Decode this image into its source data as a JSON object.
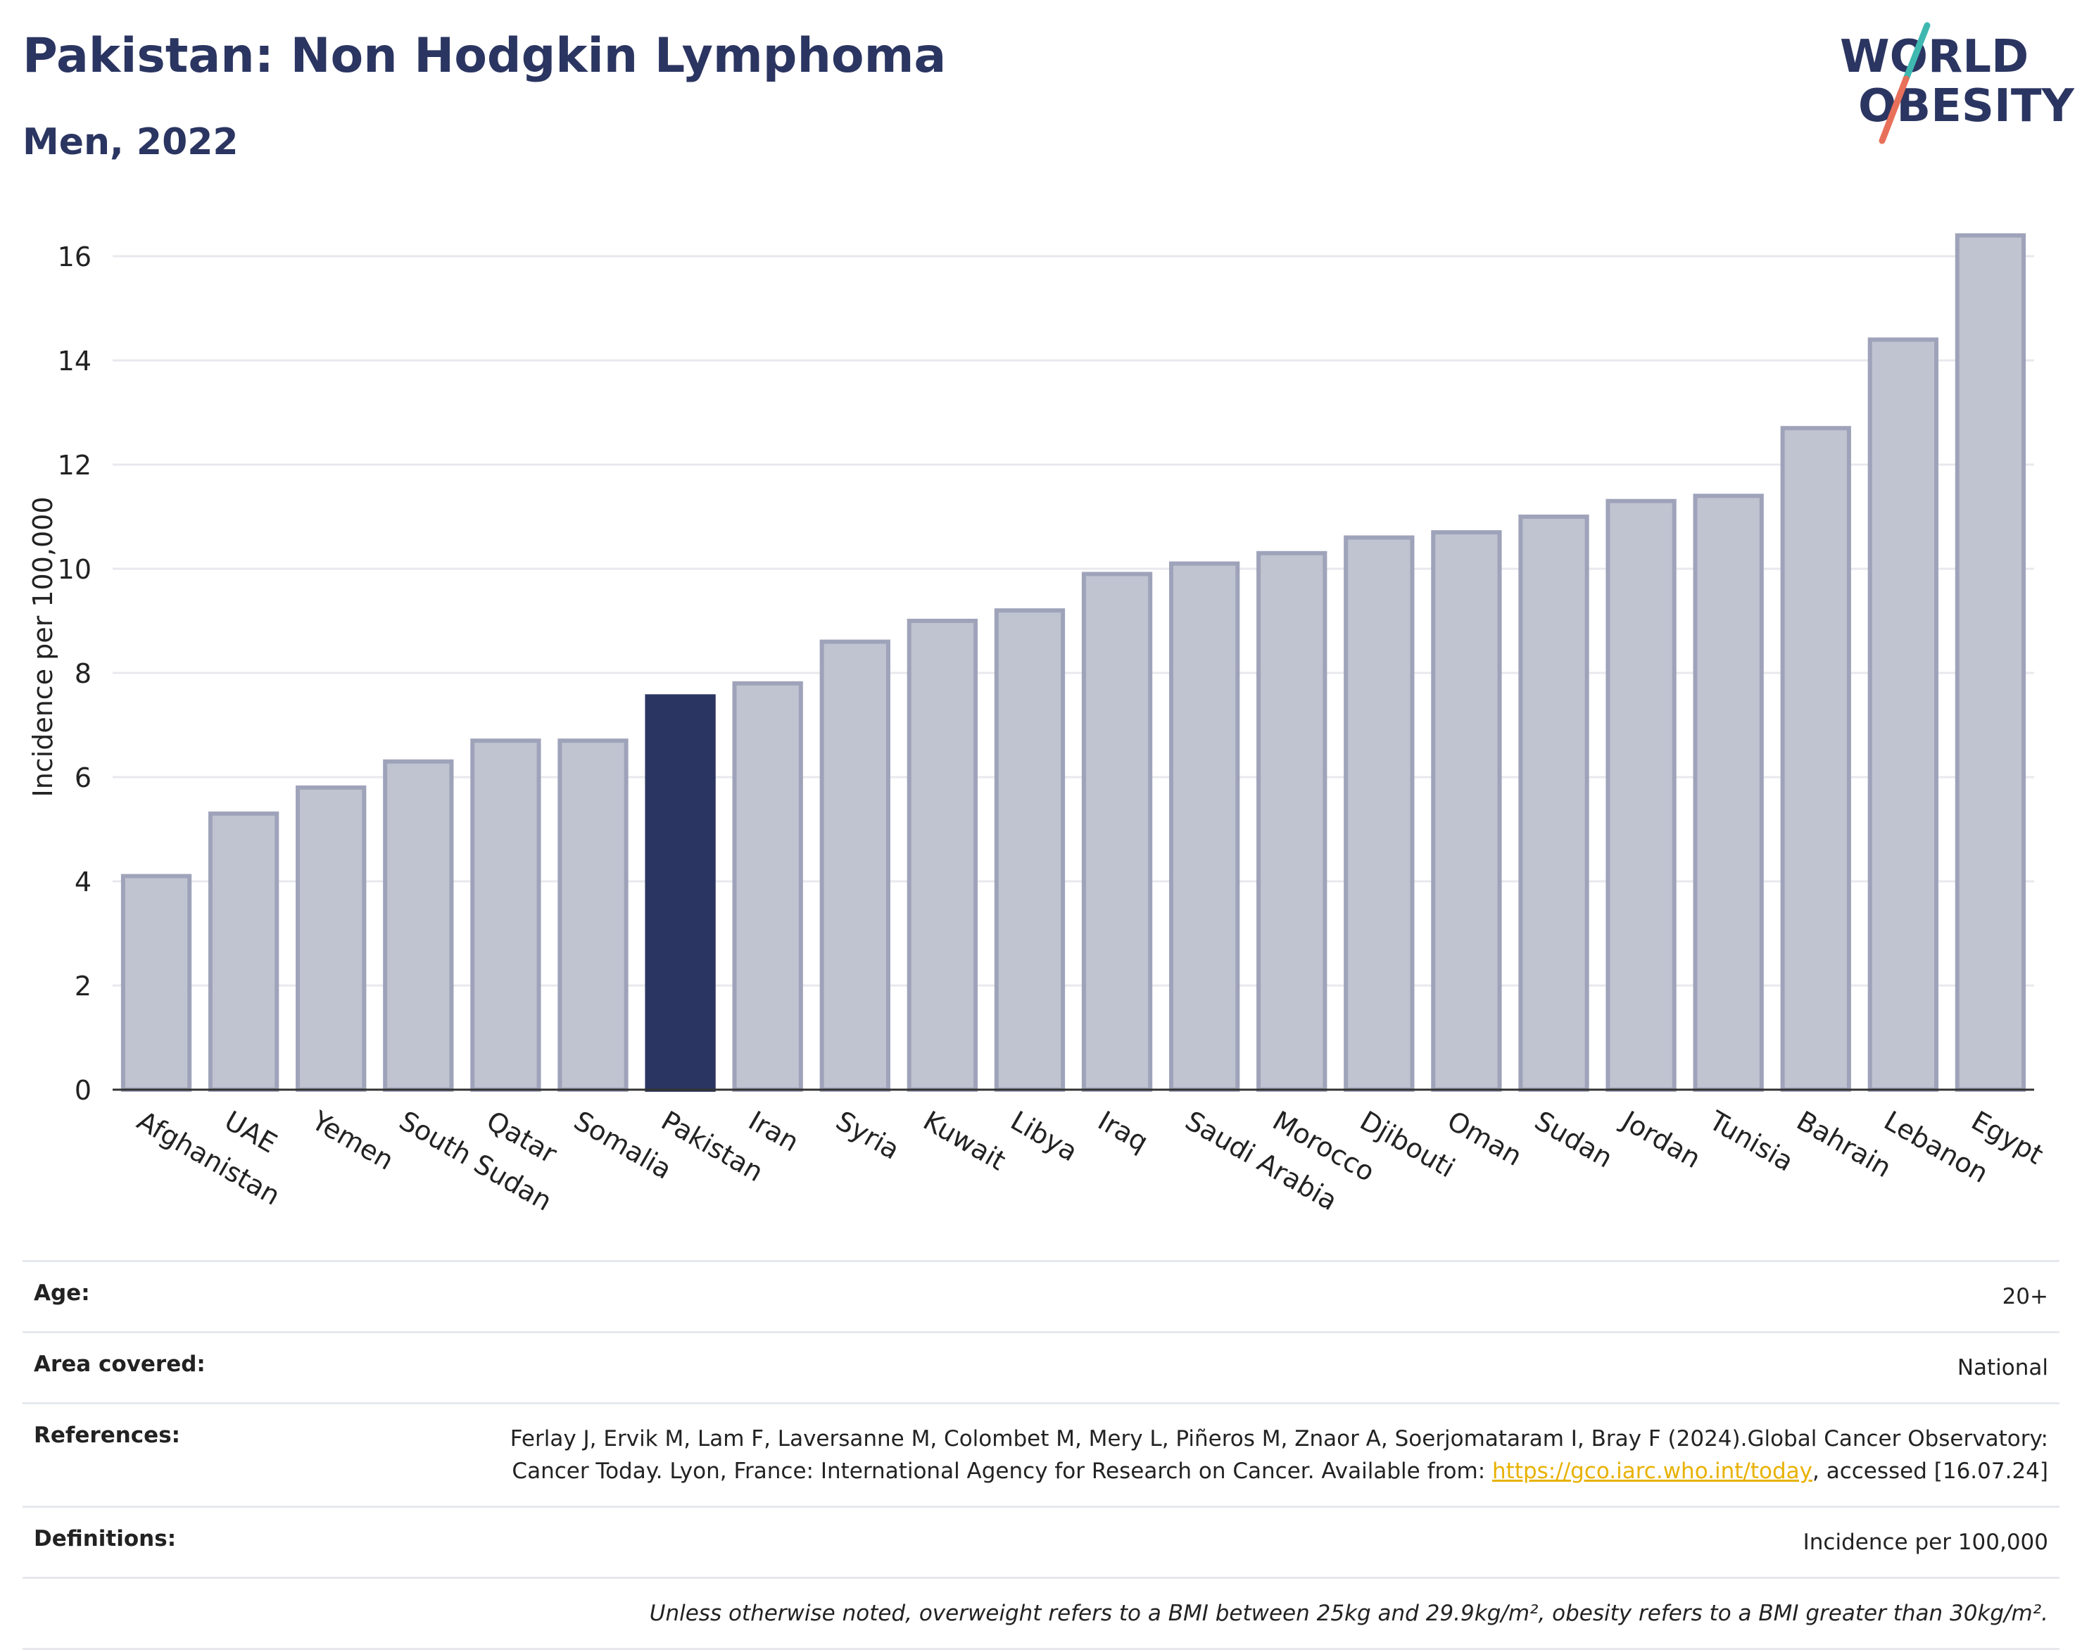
{
  "header": {
    "title": "Pakistan: Non Hodgkin Lymphoma",
    "subtitle": "Men, 2022"
  },
  "logo": {
    "line1": "WORLD",
    "line2": "OBESITY",
    "colors": {
      "text": "#2b3561",
      "slash_top": "#3fb8b0",
      "slash_bottom": "#e8705a"
    }
  },
  "chart_data": {
    "type": "bar",
    "categories": [
      "Afghanistan",
      "UAE",
      "Yemen",
      "South Sudan",
      "Qatar",
      "Somalia",
      "Pakistan",
      "Iran",
      "Syria",
      "Kuwait",
      "Libya",
      "Iraq",
      "Saudi Arabia",
      "Morocco",
      "Djibouti",
      "Oman",
      "Sudan",
      "Jordan",
      "Tunisia",
      "Bahrain",
      "Lebanon",
      "Egypt"
    ],
    "values": [
      4.1,
      5.3,
      5.8,
      6.3,
      6.7,
      6.7,
      7.55,
      7.8,
      8.6,
      9.0,
      9.2,
      9.9,
      10.1,
      10.3,
      10.6,
      10.7,
      11.0,
      11.3,
      11.4,
      12.7,
      14.4,
      16.4
    ],
    "highlight": "Pakistan",
    "ylabel": "Incidence per 100,000",
    "ylim": [
      0,
      17
    ],
    "yticks": [
      0,
      2,
      4,
      6,
      8,
      10,
      12,
      14,
      16
    ],
    "grid": true,
    "colors": {
      "bar": "#c0c3d0",
      "bar_border": "#9fa3ba",
      "highlight": "#2b3561"
    }
  },
  "info": {
    "age_label": "Age:",
    "age_value": "20+",
    "area_label": "Area covered:",
    "area_value": "National",
    "refs_label": "References:",
    "refs_text_1": "Ferlay J, Ervik M, Lam F, Laversanne M, Colombet M, Mery L, Piñeros M, Znaor A, Soerjomataram I, Bray F (2024).Global Cancer Observatory: Cancer Today. Lyon, France: International Agency for Research on Cancer. Available from: ",
    "refs_link": "https://gco.iarc.who.int/today",
    "refs_text_2": ", accessed [16.07.24]",
    "defs_label": "Definitions:",
    "defs_value": "Incidence per 100,000",
    "note": "Unless otherwise noted, overweight refers to a BMI between 25kg and 29.9kg/m², obesity refers to a BMI greater than 30kg/m²."
  }
}
